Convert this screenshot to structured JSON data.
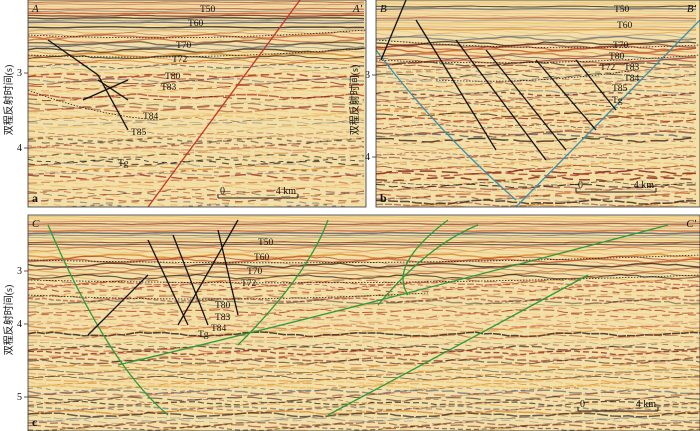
{
  "y_axis_label": "双程反射时间(s)",
  "panels": [
    {
      "label": "a",
      "start": "A",
      "end": "A'",
      "depth_ticks": [
        3,
        4
      ],
      "horizons": [
        "T50",
        "T60",
        "T70",
        "T72",
        "T80",
        "T83",
        "T84",
        "T85",
        "Tg"
      ],
      "scale_bar": {
        "start": "0",
        "end": "4 km"
      }
    },
    {
      "label": "b",
      "start": "B",
      "end": "B'",
      "depth_ticks": [
        3,
        4
      ],
      "horizons": [
        "T50",
        "T60",
        "T70",
        "T80",
        "T72",
        "T83",
        "T84",
        "T85",
        "Tg"
      ],
      "scale_bar": {
        "start": "0",
        "end": "4 km"
      }
    },
    {
      "label": "c",
      "start": "C",
      "end": "C'",
      "depth_ticks": [
        3,
        4,
        5
      ],
      "horizons": [
        "T50",
        "T60",
        "T70",
        "T72",
        "T80",
        "T83",
        "T84",
        "Tg"
      ],
      "scale_bar": {
        "start": "0",
        "end": "4 km"
      }
    }
  ]
}
